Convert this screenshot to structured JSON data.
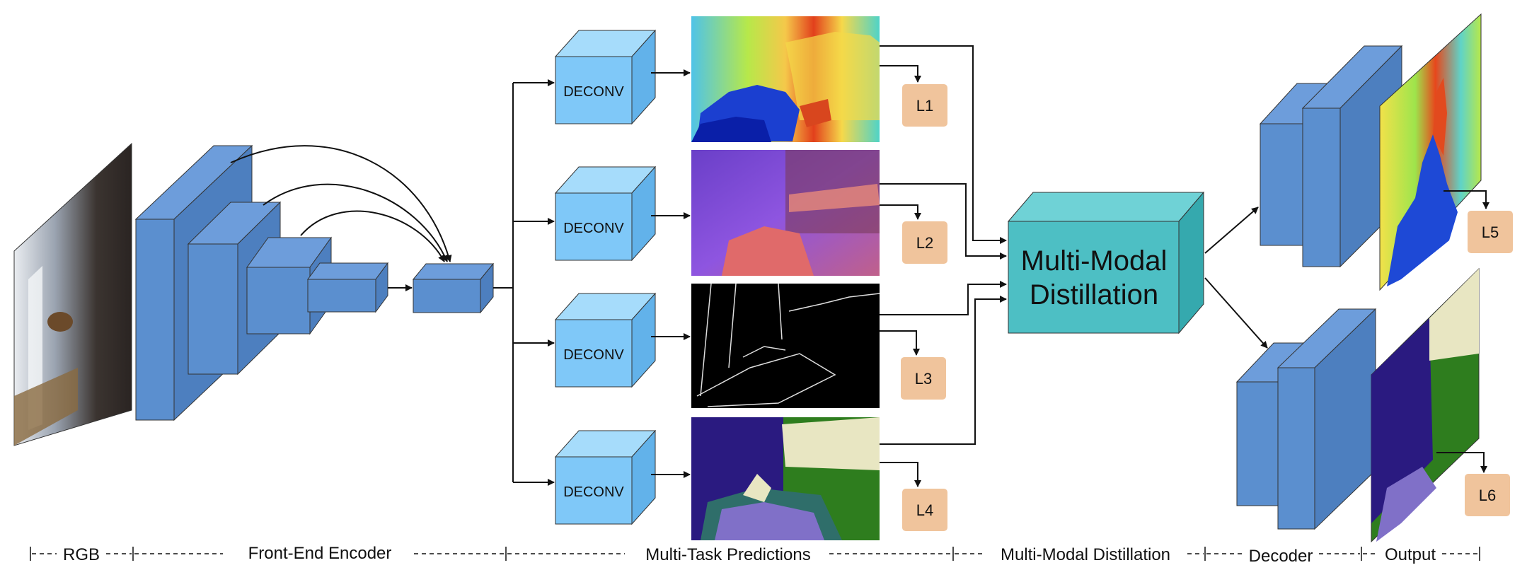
{
  "deconv_label": "DECONV",
  "loss_labels": [
    "L1",
    "L2",
    "L3",
    "L4",
    "L5",
    "L6"
  ],
  "distillation_label_line1": "Multi-Modal",
  "distillation_label_line2": "Distillation",
  "stages": {
    "rgb": "RGB",
    "encoder": "Front-End Encoder",
    "predictions": "Multi-Task Predictions",
    "distillation": "Multi-Modal Distillation",
    "decoder": "Decoder",
    "output": "Output"
  },
  "colors": {
    "encoder_block": "#5b8fcf",
    "deconv_block": "#7fc8f8",
    "distillation_block": "#4dbfc4",
    "loss_box": "#f0c49c"
  }
}
